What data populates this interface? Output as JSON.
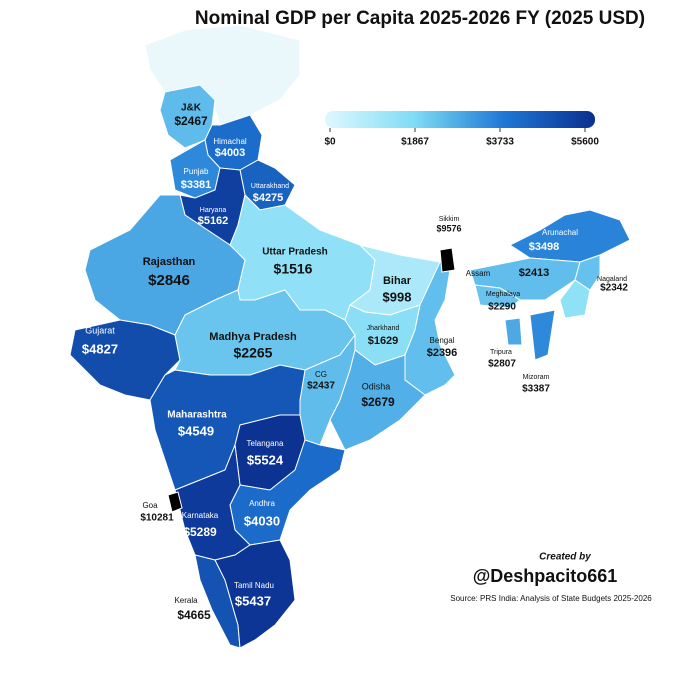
{
  "title": "Nominal GDP per Capita 2025-2026 FY (2025 USD)",
  "colorbar": {
    "range": [
      0,
      5600
    ],
    "ticks": [
      {
        "value": 0,
        "label": "$0"
      },
      {
        "value": 1867,
        "label": "$1867"
      },
      {
        "value": 3733,
        "label": "$3733"
      },
      {
        "value": 5600,
        "label": "$5600"
      }
    ]
  },
  "states": [
    {
      "name": "J&K",
      "value": 2467,
      "value_label": "$2467"
    },
    {
      "name": "Himachal",
      "value": 4003,
      "value_label": "$4003"
    },
    {
      "name": "Punjab",
      "value": 3381,
      "value_label": "$3381"
    },
    {
      "name": "Uttarakhand",
      "value": 4275,
      "value_label": "$4275"
    },
    {
      "name": "Haryana",
      "value": 5162,
      "value_label": "$5162"
    },
    {
      "name": "Rajasthan",
      "value": 2846,
      "value_label": "$2846"
    },
    {
      "name": "Uttar Pradesh",
      "value": 1516,
      "value_label": "$1516"
    },
    {
      "name": "Bihar",
      "value": 998,
      "value_label": "$998"
    },
    {
      "name": "Gujarat",
      "value": 4827,
      "value_label": "$4827"
    },
    {
      "name": "Madhya Pradesh",
      "value": 2265,
      "value_label": "$2265"
    },
    {
      "name": "Jharkhand",
      "value": 1629,
      "value_label": "$1629"
    },
    {
      "name": "Bengal",
      "value": 2396,
      "value_label": "$2396"
    },
    {
      "name": "CG",
      "value": 2437,
      "value_label": "$2437"
    },
    {
      "name": "Odisha",
      "value": 2679,
      "value_label": "$2679"
    },
    {
      "name": "Maharashtra",
      "value": 4549,
      "value_label": "$4549"
    },
    {
      "name": "Telangana",
      "value": 5524,
      "value_label": "$5524"
    },
    {
      "name": "Andhra",
      "value": 4030,
      "value_label": "$4030"
    },
    {
      "name": "Karnataka",
      "value": 5289,
      "value_label": "$5289"
    },
    {
      "name": "Goa",
      "value": 10281,
      "value_label": "$10281"
    },
    {
      "name": "Kerala",
      "value": 4665,
      "value_label": "$4665"
    },
    {
      "name": "Tamil Nadu",
      "value": 5437,
      "value_label": "$5437"
    },
    {
      "name": "Sikkim",
      "value": 9576,
      "value_label": "$9576"
    },
    {
      "name": "Arunachal",
      "value": 3498,
      "value_label": "$3498"
    },
    {
      "name": "Assam",
      "value": 2413,
      "value_label": "$2413"
    },
    {
      "name": "Meghalaya",
      "value": 2290,
      "value_label": "$2290"
    },
    {
      "name": "Nagaland",
      "value": 2342,
      "value_label": "$2342"
    },
    {
      "name": "Tripura",
      "value": 2807,
      "value_label": "$2807"
    },
    {
      "name": "Mizoram",
      "value": 3387,
      "value_label": "$3387"
    }
  ],
  "credit": {
    "created_by": "Created by",
    "handle": "@Deshpacito661"
  },
  "source": "Source: PRS India: Analysis of State Budgets 2025-2026"
}
